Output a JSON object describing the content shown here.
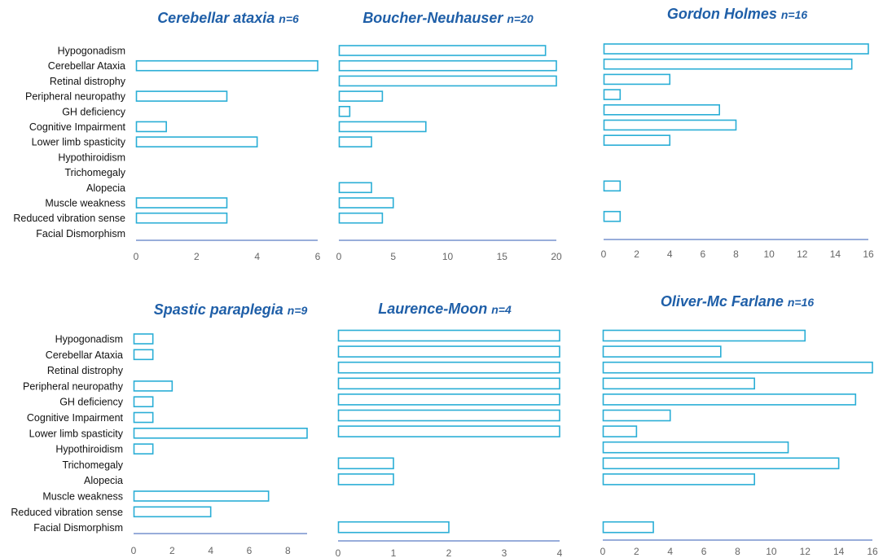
{
  "categories": [
    "Hypogonadism",
    "Cerebellar Ataxia",
    "Retinal distrophy",
    "Peripheral neuropathy",
    "GH deficiency",
    "Cognitive Impairment",
    "Lower limb spasticity",
    "Hypothiroidism",
    "Trichomegaly",
    "Alopecia",
    "Muscle  weakness",
    "Reduced vibration sense",
    "Facial Dismorphism"
  ],
  "colors": {
    "bar_stroke": "#2aaed6",
    "axis": "#5b7cc4",
    "title": "#1f5fa8"
  },
  "chart_data": [
    {
      "type": "bar",
      "orientation": "horizontal",
      "title": "Cerebellar ataxia",
      "subtitle": "n=6",
      "xlim": [
        0,
        6
      ],
      "xticks": [
        0,
        2,
        4,
        6
      ],
      "values": [
        null,
        6,
        null,
        3,
        null,
        1,
        4,
        null,
        null,
        null,
        3,
        3,
        null
      ]
    },
    {
      "type": "bar",
      "orientation": "horizontal",
      "title": "Boucher-Neuhauser",
      "subtitle": "n=20",
      "xlim": [
        0,
        20
      ],
      "xticks": [
        0,
        5,
        10,
        15,
        20
      ],
      "values": [
        19,
        20,
        20,
        4,
        1,
        8,
        3,
        null,
        null,
        3,
        5,
        4,
        null
      ]
    },
    {
      "type": "bar",
      "orientation": "horizontal",
      "title": "Gordon Holmes",
      "subtitle": "n=16",
      "xlim": [
        0,
        16
      ],
      "xticks": [
        0,
        2,
        4,
        6,
        8,
        10,
        12,
        14,
        16
      ],
      "values": [
        16,
        15,
        4,
        1,
        7,
        8,
        4,
        null,
        null,
        1,
        null,
        1,
        null
      ]
    },
    {
      "type": "bar",
      "orientation": "horizontal",
      "title": "Spastic paraplegia",
      "subtitle": "n=9",
      "xlim": [
        0,
        9
      ],
      "xticks": [
        0,
        2,
        4,
        6,
        8
      ],
      "values": [
        1,
        1,
        null,
        2,
        1,
        1,
        9,
        1,
        null,
        null,
        7,
        4,
        null
      ]
    },
    {
      "type": "bar",
      "orientation": "horizontal",
      "title": "Laurence-Moon",
      "subtitle": "n=4",
      "xlim": [
        0,
        4
      ],
      "xticks": [
        0,
        1,
        2,
        3,
        4
      ],
      "values": [
        4,
        4,
        4,
        4,
        4,
        4,
        4,
        null,
        1,
        1,
        null,
        null,
        2
      ]
    },
    {
      "type": "bar",
      "orientation": "horizontal",
      "title": "Oliver-Mc Farlane",
      "subtitle": "n=16",
      "xlim": [
        0,
        16
      ],
      "xticks": [
        0,
        2,
        4,
        6,
        8,
        10,
        12,
        14,
        16
      ],
      "values": [
        12,
        7,
        16,
        9,
        15,
        4,
        2,
        11,
        14,
        9,
        null,
        null,
        3
      ]
    }
  ]
}
